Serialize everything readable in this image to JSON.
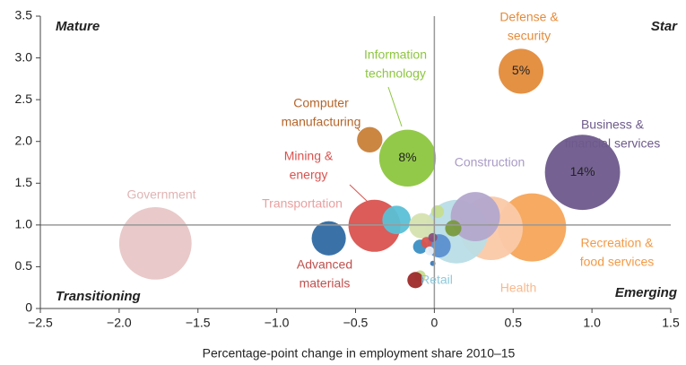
{
  "chart_data": {
    "type": "bubble",
    "x_label": "Percentage-point change in employment share 2010–15",
    "quadrant_labels": [
      "Mature",
      "Star",
      "Transitioning",
      "Emerging"
    ],
    "xlim": [
      -2.5,
      1.5
    ],
    "ylim": [
      0,
      3.5
    ],
    "xticks": [
      {
        "value": -2.5,
        "label": "−2.5"
      },
      {
        "value": -2.0,
        "label": "−2.0"
      },
      {
        "value": -1.5,
        "label": "−1.5"
      },
      {
        "value": -1.0,
        "label": "−1.0"
      },
      {
        "value": -0.5,
        "label": "−0.5"
      },
      0,
      0.5,
      {
        "value": 1.0,
        "label": "1.0"
      },
      1.5
    ],
    "yticks": [
      0,
      0.5,
      {
        "value": 1.0,
        "label": "1.0"
      },
      1.5,
      {
        "value": 2.0,
        "label": "2.0"
      },
      2.5,
      {
        "value": 3.0,
        "label": "3.0"
      },
      3.5
    ],
    "vline": 0,
    "hline": 1,
    "x": [
      -1.77,
      0.94,
      -0.17,
      0.55,
      -0.41,
      0.62,
      0.36,
      0.14,
      0.26,
      -0.38,
      -0.24,
      -0.67,
      -0.08,
      0.12,
      0.02,
      0.03,
      -0.09,
      -0.05,
      -0.01,
      -0.03,
      -0.01,
      -0.09,
      -0.12
    ],
    "values": [
      0.78,
      1.63,
      1.8,
      2.84,
      2.02,
      0.97,
      0.96,
      0.92,
      1.1,
      0.99,
      1.06,
      0.84,
      0.99,
      0.96,
      1.16,
      0.75,
      0.74,
      0.79,
      0.85,
      0.69,
      0.54,
      0.39,
      0.34
    ],
    "sizes": [
      13,
      14,
      8,
      5,
      1.6,
      11.5,
      10,
      10,
      6,
      6.7,
      2,
      2.9,
      1.6,
      0.65,
      0.4,
      1.35,
      0.5,
      0.3,
      0.2,
      0.2,
      0.07,
      0.3,
      0.65
    ],
    "value_labels": [
      null,
      "14%",
      "8%",
      "5%",
      null,
      null,
      null,
      null,
      null,
      null,
      null,
      null,
      null,
      null,
      null,
      null,
      null,
      null,
      null,
      null,
      null,
      null,
      null
    ],
    "colors": [
      "#e8c6c6",
      "#6e5a8c",
      "#8dc63f",
      "#e38b3a",
      "#c87f38",
      "#f6a55a",
      "#fac9a8",
      "#b9dde6",
      "#b3a6cc",
      "#d9534f",
      "#5bc0d6",
      "#2f6aa3",
      "#d6e2b0",
      "#7a9a3c",
      "#c5dd8e",
      "#5b8fd0",
      "#3b8fc4",
      "#d9534f",
      "#8a4d7a",
      "#e8eef6",
      "#3d7ab8",
      "#c5dd8e",
      "#9e2a2a"
    ],
    "labels": [
      [
        "Government"
      ],
      [
        "Business &",
        "financial services"
      ],
      [
        "Information",
        "technology"
      ],
      [
        "Defense &",
        "security"
      ],
      [
        "Computer",
        "manufacturing"
      ],
      [
        "Recreation &",
        "food services"
      ],
      [
        "Health"
      ],
      [
        "Retail"
      ],
      [
        "Construction"
      ],
      [
        "Mining &",
        "energy"
      ],
      [
        "Transportation"
      ],
      [
        "Advanced",
        "materials"
      ],
      null,
      null,
      null,
      null,
      null,
      null,
      null,
      null,
      null,
      null,
      null
    ],
    "label_colors": [
      "#e0b4b4",
      "#6e5a8c",
      "#8dc63f",
      "#e38b3a",
      "#b5652a",
      "#f29a45",
      "#f7b98e",
      "#8fc9dc",
      "#a99bc6",
      "#d9534f",
      "#e9a0a0",
      "#c0504d",
      null,
      null,
      null,
      null,
      null,
      null,
      null,
      null,
      null,
      null,
      null
    ]
  }
}
